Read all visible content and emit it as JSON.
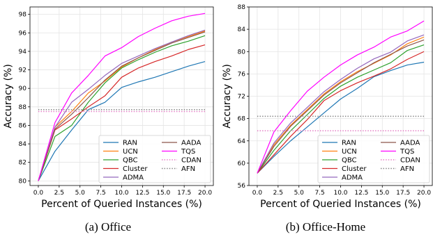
{
  "chart_data": [
    {
      "type": "line",
      "caption": "(a)  Office",
      "xlabel": "Percent of Queried Instances (%)",
      "ylabel": "Accuracy (%)",
      "xlim": [
        -1,
        21
      ],
      "ylim": [
        79.5,
        98.8
      ],
      "xticks": [
        0.0,
        2.5,
        5.0,
        7.5,
        10.0,
        12.5,
        15.0,
        17.5,
        20.0
      ],
      "yticks": [
        80,
        82,
        84,
        86,
        88,
        90,
        92,
        94,
        96,
        98
      ],
      "grid": true,
      "legend": "lower-right",
      "x": [
        0,
        2,
        4,
        6,
        8,
        10,
        12,
        14,
        16,
        18,
        20
      ],
      "series": [
        {
          "name": "RAN",
          "color": "#1f77b4",
          "dash": "solid",
          "values": [
            80.0,
            83.2,
            85.5,
            87.7,
            88.5,
            90.1,
            90.7,
            91.2,
            91.8,
            92.4,
            92.9
          ]
        },
        {
          "name": "UCN",
          "color": "#ff7f0e",
          "dash": "solid",
          "values": [
            80.0,
            85.8,
            87.5,
            89.5,
            90.8,
            92.3,
            93.3,
            94.2,
            95.0,
            95.6,
            96.2
          ]
        },
        {
          "name": "QBC",
          "color": "#2ca02c",
          "dash": "solid",
          "values": [
            80.0,
            84.8,
            86.0,
            88.5,
            90.6,
            92.2,
            93.1,
            93.9,
            94.6,
            95.1,
            95.7
          ]
        },
        {
          "name": "Cluster",
          "color": "#d62728",
          "dash": "solid",
          "values": [
            80.0,
            85.5,
            86.7,
            88.0,
            89.2,
            91.2,
            92.2,
            92.9,
            93.5,
            94.2,
            94.7
          ]
        },
        {
          "name": "ADMA",
          "color": "#9467bd",
          "dash": "solid",
          "values": [
            80.0,
            85.8,
            88.5,
            89.9,
            91.4,
            92.7,
            93.5,
            94.3,
            95.0,
            95.7,
            96.3
          ]
        },
        {
          "name": "AADA",
          "color": "#8c564b",
          "dash": "solid",
          "values": [
            80.0,
            85.6,
            87.2,
            89.0,
            90.9,
            92.4,
            93.3,
            94.1,
            94.9,
            95.5,
            96.1
          ]
        },
        {
          "name": "TQS",
          "color": "#e377c2",
          "dash": "solid",
          "stroke": "#ff00ff",
          "values": [
            80.0,
            86.3,
            89.5,
            91.4,
            93.5,
            94.4,
            95.6,
            96.5,
            97.3,
            97.8,
            98.1
          ]
        },
        {
          "name": "CDAN",
          "color": "#e377c2",
          "dash": "dotted",
          "values": [
            87.5,
            87.5,
            87.5,
            87.5,
            87.5,
            87.5,
            87.5,
            87.5,
            87.5,
            87.5,
            87.5
          ]
        },
        {
          "name": "AFN",
          "color": "#7f7f7f",
          "dash": "dotted",
          "values": [
            87.7,
            87.7,
            87.7,
            87.7,
            87.7,
            87.7,
            87.7,
            87.7,
            87.7,
            87.7,
            87.7
          ]
        }
      ]
    },
    {
      "type": "line",
      "caption": "(b)  Office-Home",
      "xlabel": "Percent of Queried Instances (%)",
      "ylabel": "Accuracy (%)",
      "xlim": [
        -1,
        21
      ],
      "ylim": [
        56,
        88
      ],
      "xticks": [
        0.0,
        2.5,
        5.0,
        7.5,
        10.0,
        12.5,
        15.0,
        17.5,
        20.0
      ],
      "yticks": [
        56,
        60,
        64,
        68,
        72,
        76,
        80,
        84,
        88
      ],
      "grid": true,
      "legend": "lower-right",
      "x": [
        0,
        2,
        4,
        6,
        8,
        10,
        12,
        14,
        16,
        18,
        20
      ],
      "series": [
        {
          "name": "RAN",
          "color": "#1f77b4",
          "dash": "solid",
          "values": [
            58.2,
            61.2,
            64.0,
            66.5,
            69.0,
            71.5,
            73.4,
            75.5,
            76.6,
            77.6,
            78.1
          ]
        },
        {
          "name": "UCN",
          "color": "#ff7f0e",
          "dash": "solid",
          "values": [
            58.2,
            63.3,
            66.8,
            69.6,
            72.4,
            74.6,
            76.4,
            77.9,
            79.4,
            81.4,
            82.6
          ]
        },
        {
          "name": "QBC",
          "color": "#2ca02c",
          "dash": "solid",
          "values": [
            58.2,
            62.3,
            65.8,
            68.7,
            71.6,
            73.8,
            75.4,
            76.7,
            78.0,
            80.2,
            81.2
          ]
        },
        {
          "name": "Cluster",
          "color": "#d62728",
          "dash": "solid",
          "values": [
            58.2,
            61.5,
            64.8,
            67.8,
            71.2,
            73.0,
            74.4,
            75.6,
            76.9,
            78.6,
            80.0
          ]
        },
        {
          "name": "ADMA",
          "color": "#9467bd",
          "dash": "solid",
          "values": [
            58.2,
            63.6,
            67.2,
            70.0,
            72.8,
            75.0,
            77.0,
            78.7,
            79.9,
            81.9,
            83.0
          ]
        },
        {
          "name": "AADA",
          "color": "#8c564b",
          "dash": "solid",
          "values": [
            58.2,
            63.0,
            66.6,
            69.4,
            72.2,
            74.4,
            76.2,
            78.0,
            79.5,
            81.0,
            82.1
          ]
        },
        {
          "name": "TQS",
          "color": "#e377c2",
          "dash": "solid",
          "stroke": "#ff00ff",
          "values": [
            58.2,
            65.6,
            69.4,
            72.9,
            75.4,
            77.6,
            79.4,
            80.8,
            82.6,
            83.7,
            85.5
          ]
        },
        {
          "name": "CDAN",
          "color": "#e377c2",
          "dash": "dotted",
          "values": [
            65.8,
            65.8,
            65.8,
            65.8,
            65.8,
            65.8,
            65.8,
            65.8,
            65.8,
            65.8,
            65.8
          ]
        },
        {
          "name": "AFN",
          "color": "#7f7f7f",
          "dash": "dotted",
          "values": [
            68.4,
            68.4,
            68.4,
            68.4,
            68.4,
            68.4,
            68.4,
            68.4,
            68.4,
            68.4,
            68.4
          ]
        }
      ]
    }
  ]
}
